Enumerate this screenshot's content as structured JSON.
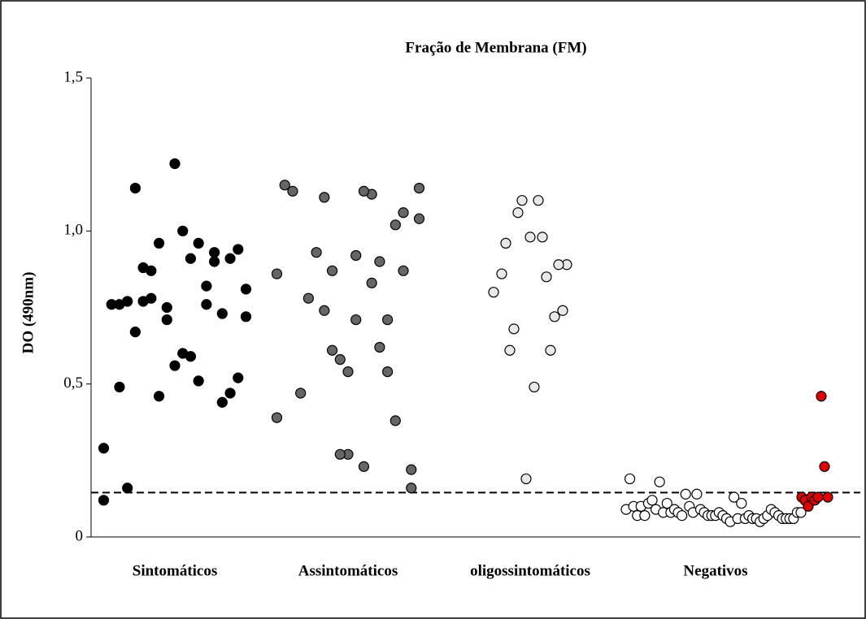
{
  "chart_data": {
    "type": "strip",
    "title": "Fração de Membrana (FM)",
    "y_label": "DO (490nm)",
    "categories": [
      "Sintomáticos",
      "Assintomáticos",
      "oligossintomáticos",
      "Negativos"
    ],
    "groups": [
      {
        "color": "#000000",
        "values": [
          0.12,
          0.81,
          0.52,
          0.47,
          0.44,
          0.9,
          0.76,
          0.51,
          0.59,
          0.6,
          0.56,
          0.71,
          0.46,
          0.78,
          0.77,
          1.14,
          0.16,
          0.49,
          0.76,
          0.29,
          0.72,
          0.94,
          0.91,
          0.73,
          0.93,
          0.82,
          0.96,
          0.91,
          1.0,
          1.22,
          0.75,
          0.96,
          0.87,
          0.88,
          0.67,
          0.77,
          0.76
        ]
      },
      {
        "color": "#666666",
        "values": [
          0.86,
          1.14,
          0.22,
          0.87,
          0.38,
          0.71,
          0.9,
          1.12,
          1.13,
          0.92,
          0.27,
          0.58,
          0.87,
          0.74,
          0.93,
          0.78,
          0.47,
          1.13,
          1.15,
          0.39,
          1.04,
          0.16,
          1.06,
          1.02,
          0.54,
          0.62,
          0.83,
          0.23,
          0.71,
          0.54,
          0.27,
          0.61,
          1.11
        ]
      },
      {
        "color": "#e8e8e8",
        "values": [
          0.8,
          0.89,
          0.74,
          0.89,
          0.72,
          0.61,
          0.85,
          0.98,
          1.1,
          0.49,
          0.98,
          0.19,
          1.1,
          1.06,
          0.68,
          0.61,
          0.96,
          0.86
        ]
      },
      {
        "color": "#ffffff",
        "values": [
          0.09,
          0.19,
          0.1,
          0.07,
          0.1,
          0.07,
          0.11,
          0.12,
          0.09,
          0.18,
          0.08,
          0.11,
          0.08,
          0.09,
          0.08,
          0.07,
          0.14,
          0.1,
          0.08,
          0.14,
          0.09,
          0.08,
          0.07,
          0.07,
          0.07,
          0.08,
          0.07,
          0.06,
          0.05,
          0.13,
          0.06,
          0.11,
          0.06,
          0.07,
          0.06,
          0.06,
          0.05,
          0.06,
          0.07,
          0.09,
          0.08,
          0.07,
          0.06,
          0.06,
          0.06,
          0.06,
          0.08,
          0.08
        ],
        "highlight_color": "#e00000",
        "highlight_values": [
          0.13,
          0.12,
          0.1,
          0.13,
          0.12,
          0.13,
          0.46,
          0.23,
          0.13
        ]
      }
    ],
    "threshold": 0.145,
    "ylim": [
      0,
      1.5
    ],
    "yticks": [
      0,
      {
        "value": 0.5,
        "label": "0,5"
      },
      {
        "value": 1.0,
        "label": "1,0"
      },
      {
        "value": 1.5,
        "label": "1,5"
      }
    ]
  }
}
